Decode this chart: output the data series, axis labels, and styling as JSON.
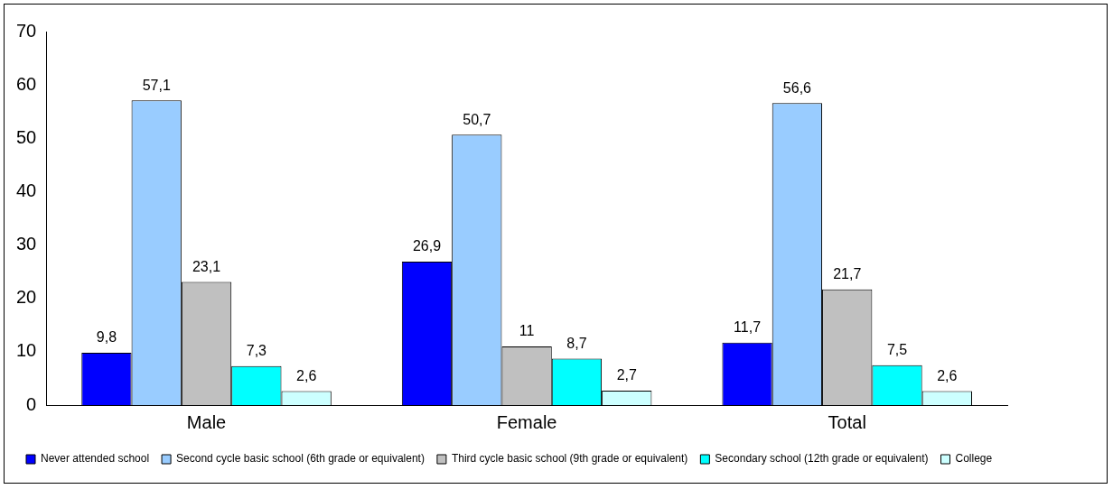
{
  "chart_data": {
    "type": "bar",
    "categories": [
      "Male",
      "Female",
      "Total"
    ],
    "series": [
      {
        "name": "Never attended school",
        "color": "#0000ff",
        "values": [
          9.8,
          26.9,
          11.7
        ],
        "value_labels": [
          "9,8",
          "26,9",
          "11,7"
        ]
      },
      {
        "name": "Second cycle basic school (6th grade or equivalent)",
        "color": "#99ccff",
        "values": [
          57.1,
          50.7,
          56.6
        ],
        "value_labels": [
          "57,1",
          "50,7",
          "56,6"
        ]
      },
      {
        "name": "Third cycle basic school (9th grade or equivalent)",
        "color": "#c0c0c0",
        "values": [
          23.1,
          11,
          21.7
        ],
        "value_labels": [
          "23,1",
          "11",
          "21,7"
        ]
      },
      {
        "name": "Secondary school (12th grade or equivalent)",
        "color": "#00ffff",
        "values": [
          7.3,
          8.7,
          7.5
        ],
        "value_labels": [
          "7,3",
          "8,7",
          "7,5"
        ]
      },
      {
        "name": "College",
        "color": "#ccffff",
        "values": [
          2.6,
          2.7,
          2.6
        ],
        "value_labels": [
          "2,6",
          "2,7",
          "2,6"
        ]
      }
    ],
    "ylim": [
      0,
      70
    ],
    "yticks": [
      0,
      10,
      20,
      30,
      40,
      50,
      60,
      70
    ],
    "grid": false,
    "legend": "bottom"
  }
}
